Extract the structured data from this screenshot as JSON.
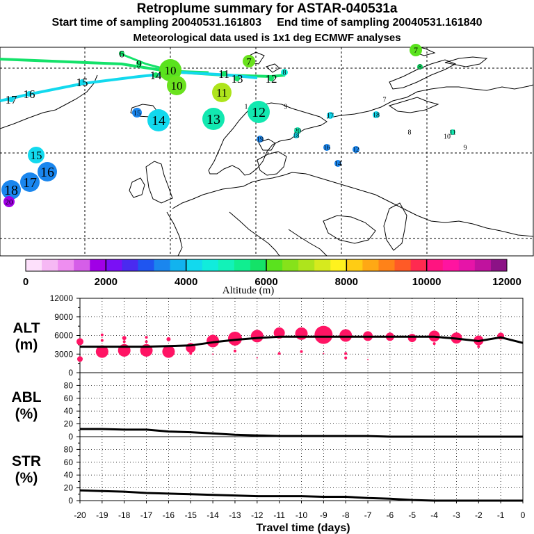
{
  "header": {
    "title": "Retroplume summary for ASTAR-040531a",
    "start_label": "Start time of sampling 20040531.161803",
    "end_label": "End time of sampling 20040531.161840",
    "met_label": "Meteorological data used is 1x1 deg ECMWF analyses"
  },
  "colorbar": {
    "ticks": [
      "0",
      "2000",
      "4000",
      "6000",
      "8000",
      "10000",
      "12000"
    ],
    "label": "Altitude (m)",
    "colors": [
      "#fde0fb",
      "#f6b8f4",
      "#ee8ef0",
      "#d55ee8",
      "#a000e6",
      "#7a10f5",
      "#4a2af0",
      "#1f55f0",
      "#1a86ee",
      "#12b3ee",
      "#12d9ee",
      "#11ecdc",
      "#12f2b8",
      "#10ee90",
      "#14e268",
      "#5ae21e",
      "#86e21a",
      "#aee41c",
      "#d6ea1e",
      "#fff21e",
      "#ffcc14",
      "#ffa814",
      "#ff8218",
      "#ff5a26",
      "#ff2a50",
      "#ff1480",
      "#ff14a0",
      "#e614a8",
      "#c0129e",
      "#8c1286"
    ]
  },
  "map": {
    "markers": [
      {
        "label": "6",
        "color": "#14e26a"
      },
      {
        "label": "9",
        "color": "#14e26a"
      },
      {
        "label": "10",
        "color": "#5ae21e"
      },
      {
        "label": "14",
        "color": "#14e26a"
      },
      {
        "label": "10",
        "color": "#6ae21e"
      },
      {
        "label": "11",
        "color": "#14e26a"
      },
      {
        "label": "13",
        "color": "#14e26a"
      },
      {
        "label": "12",
        "color": "#14e26a"
      },
      {
        "label": "11",
        "color": "#aee41c"
      },
      {
        "label": "7",
        "color": "#6ae21e"
      },
      {
        "label": "8",
        "color": "#12ecd8"
      },
      {
        "label": "7",
        "color": "#5ae21e"
      },
      {
        "label": "8",
        "color": "#14e26a"
      },
      {
        "label": "15",
        "color": "#12d9ee"
      },
      {
        "label": "16",
        "color": "#12d9ee"
      },
      {
        "label": "17",
        "color": "#12d9ee"
      },
      {
        "label": "15",
        "color": "#1a86ee"
      },
      {
        "label": "14",
        "color": "#12d9ee"
      },
      {
        "label": "13",
        "color": "#12e8b0"
      },
      {
        "label": "12",
        "color": "#12e8b0"
      },
      {
        "label": "1",
        "color": "#12e8b0"
      },
      {
        "label": "9",
        "color": "#12e8b0"
      },
      {
        "label": "17",
        "color": "#12d9ee"
      },
      {
        "label": "18",
        "color": "#12d9ee"
      },
      {
        "label": "7",
        "color": "#12d9ee"
      },
      {
        "label": "20",
        "color": "#12e8b0"
      },
      {
        "label": "18",
        "color": "#12d9ee"
      },
      {
        "label": "19",
        "color": "#1a86ee"
      },
      {
        "label": "16",
        "color": "#1a86ee"
      },
      {
        "label": "12",
        "color": "#1a86ee"
      },
      {
        "label": "8",
        "color": "#12e8b0"
      },
      {
        "label": "11",
        "color": "#12e8b0"
      },
      {
        "label": "10",
        "color": "#12e8b0"
      },
      {
        "label": "9",
        "color": "#12e8b0"
      },
      {
        "label": "14",
        "color": "#1a86ee"
      },
      {
        "label": "15",
        "color": "#12d9ee"
      },
      {
        "label": "16",
        "color": "#1a86ee"
      },
      {
        "label": "17",
        "color": "#1a86ee"
      },
      {
        "label": "18",
        "color": "#1a86ee"
      },
      {
        "label": "20",
        "color": "#a000e6"
      }
    ]
  },
  "chart_data": {
    "type": "line",
    "xlabel": "Travel time (days)",
    "x": [
      -20,
      -19,
      -18,
      -17,
      -16,
      -15,
      -14,
      -13,
      -12,
      -11,
      -10,
      -9,
      -8,
      -7,
      -6,
      -5,
      -4,
      -3,
      -2,
      -1,
      0
    ],
    "xticks": [
      "-20",
      "-19",
      "-18",
      "-17",
      "-16",
      "-15",
      "-14",
      "-13",
      "-12",
      "-11",
      "-10",
      "-9",
      "-8",
      "-7",
      "-6",
      "-5",
      "-4",
      "-3",
      "-2",
      "-1",
      "0"
    ],
    "panels": [
      {
        "ylabel": "ALT",
        "yunit": "(m)",
        "ylim": [
          0,
          12000
        ],
        "yticks": [
          "0",
          "3000",
          "6000",
          "9000",
          "12000"
        ],
        "yticks_v": [
          0,
          3000,
          6000,
          9000,
          12000
        ],
        "minor": [
          1500,
          4500,
          7500,
          10500
        ],
        "line": [
          4200,
          4200,
          4200,
          4200,
          4300,
          4400,
          4900,
          5300,
          5600,
          5800,
          5800,
          5800,
          5800,
          5800,
          5800,
          5800,
          5800,
          5500,
          5100,
          5700,
          4800
        ],
        "bubble_color": "#ff1464",
        "bubbles": [
          {
            "x": -20,
            "y": 5000,
            "r": 5
          },
          {
            "x": -20,
            "y": 2200,
            "r": 4
          },
          {
            "x": -19,
            "y": 3400,
            "r": 9
          },
          {
            "x": -19,
            "y": 6100,
            "r": 2
          },
          {
            "x": -19,
            "y": 5200,
            "r": 2
          },
          {
            "x": -18,
            "y": 3600,
            "r": 9
          },
          {
            "x": -18,
            "y": 5600,
            "r": 3
          },
          {
            "x": -18,
            "y": 5000,
            "r": 2
          },
          {
            "x": -17,
            "y": 3600,
            "r": 9
          },
          {
            "x": -17,
            "y": 5700,
            "r": 2
          },
          {
            "x": -17,
            "y": 5000,
            "r": 2
          },
          {
            "x": -16,
            "y": 3400,
            "r": 9
          },
          {
            "x": -16,
            "y": 5400,
            "r": 3
          },
          {
            "x": -15,
            "y": 4000,
            "r": 7
          },
          {
            "x": -15,
            "y": 3100,
            "r": 2
          },
          {
            "x": -14,
            "y": 5100,
            "r": 9
          },
          {
            "x": -14,
            "y": 3000,
            "r": 1
          },
          {
            "x": -13,
            "y": 5500,
            "r": 10
          },
          {
            "x": -13,
            "y": 3500,
            "r": 2
          },
          {
            "x": -12,
            "y": 5900,
            "r": 9
          },
          {
            "x": -12,
            "y": 2400,
            "r": 1
          },
          {
            "x": -11,
            "y": 6400,
            "r": 8
          },
          {
            "x": -11,
            "y": 3100,
            "r": 2
          },
          {
            "x": -10,
            "y": 6300,
            "r": 9
          },
          {
            "x": -10,
            "y": 3400,
            "r": 2
          },
          {
            "x": -9,
            "y": 6100,
            "r": 13
          },
          {
            "x": -9,
            "y": 3100,
            "r": 1
          },
          {
            "x": -8,
            "y": 6000,
            "r": 9
          },
          {
            "x": -8,
            "y": 3100,
            "r": 2
          },
          {
            "x": -8,
            "y": 2400,
            "r": 2
          },
          {
            "x": -7,
            "y": 5900,
            "r": 7
          },
          {
            "x": -7,
            "y": 2100,
            "r": 1
          },
          {
            "x": -6,
            "y": 5800,
            "r": 6
          },
          {
            "x": -5,
            "y": 5600,
            "r": 6
          },
          {
            "x": -4,
            "y": 5900,
            "r": 8
          },
          {
            "x": -4,
            "y": 4700,
            "r": 2
          },
          {
            "x": -3,
            "y": 5600,
            "r": 8
          },
          {
            "x": -2,
            "y": 5200,
            "r": 7
          },
          {
            "x": -2,
            "y": 4200,
            "r": 2
          },
          {
            "x": -1,
            "y": 5900,
            "r": 5
          }
        ]
      },
      {
        "ylabel": "ABL",
        "yunit": "(%)",
        "ylim": [
          0,
          100
        ],
        "yticks": [
          "0",
          "20",
          "40",
          "60",
          "80"
        ],
        "yticks_v": [
          0,
          20,
          40,
          60,
          80
        ],
        "minor": [
          10,
          30,
          50,
          70,
          90
        ],
        "line": [
          12,
          12,
          11,
          11,
          8,
          7,
          5,
          3,
          2,
          1,
          1,
          1,
          1,
          1,
          0,
          0,
          0,
          0,
          0,
          0,
          0
        ]
      },
      {
        "ylabel": "STR",
        "yunit": "(%)",
        "ylim": [
          0,
          100
        ],
        "yticks": [
          "0",
          "20",
          "40",
          "60",
          "80"
        ],
        "yticks_v": [
          0,
          20,
          40,
          60,
          80
        ],
        "minor": [
          10,
          30,
          50,
          70,
          90
        ],
        "line": [
          16,
          15,
          14,
          12,
          11,
          10,
          9,
          8,
          7,
          7,
          7,
          6,
          6,
          4,
          3,
          1,
          0,
          0,
          0,
          0,
          0
        ]
      }
    ]
  }
}
